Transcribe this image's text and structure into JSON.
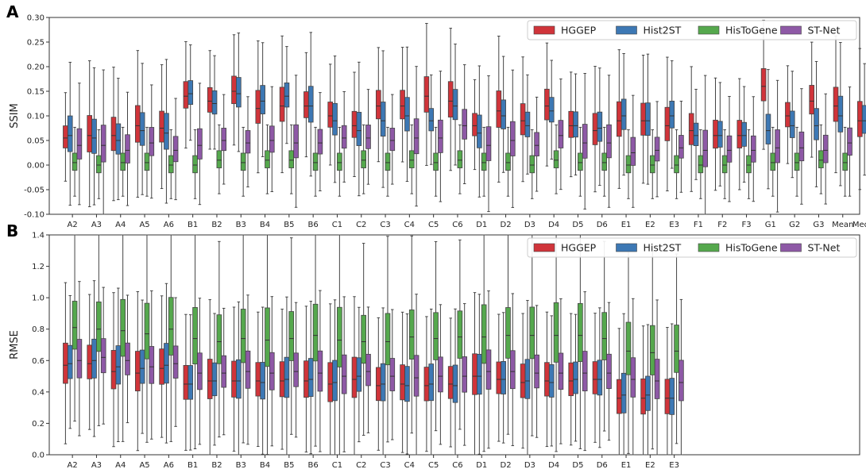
{
  "chart_data": [
    {
      "panel": "A",
      "type": "box",
      "ylabel": "SSIM",
      "xlabel": "",
      "ylim": [
        -0.1,
        0.3
      ],
      "yticks": [
        "-0.10",
        "-0.05",
        "0.00",
        "0.05",
        "0.10",
        "0.15",
        "0.20",
        "0.25",
        "0.30"
      ],
      "yticks_values": [
        -0.1,
        -0.05,
        0.0,
        0.05,
        0.1,
        0.15,
        0.2,
        0.25,
        0.3
      ],
      "categories": [
        "A2",
        "A3",
        "A4",
        "A5",
        "A6",
        "B1",
        "B2",
        "B3",
        "B4",
        "B5",
        "B6",
        "C1",
        "C2",
        "C3",
        "C4",
        "C5",
        "C6",
        "D1",
        "D2",
        "D3",
        "D4",
        "D5",
        "D6",
        "E1",
        "E2",
        "E3",
        "F1",
        "F2",
        "F3",
        "G1",
        "G2",
        "G3",
        "Mean",
        "Median"
      ],
      "legend": {
        "position": "top-right",
        "entries": [
          "HGGEP",
          "Hist2ST",
          "HisToGene",
          "ST-Net"
        ]
      },
      "series": [
        {
          "name": "HGGEP",
          "color": "#d0343a",
          "median": [
            0.055,
            0.06,
            0.06,
            0.08,
            0.075,
            0.14,
            0.13,
            0.15,
            0.115,
            0.12,
            0.12,
            0.1,
            0.08,
            0.12,
            0.12,
            0.14,
            0.13,
            0.08,
            0.11,
            0.09,
            0.12,
            0.08,
            0.07,
            0.09,
            0.09,
            0.08,
            0.07,
            0.06,
            0.06,
            0.16,
            0.1,
            0.13,
            0.12,
            0.09
          ]
        },
        {
          "name": "Hist2ST",
          "color": "#3d78b4",
          "median": [
            0.06,
            0.055,
            0.05,
            0.07,
            0.065,
            0.145,
            0.125,
            0.145,
            0.13,
            0.14,
            0.12,
            0.09,
            0.07,
            0.09,
            0.1,
            0.09,
            0.12,
            0.065,
            0.1,
            0.08,
            0.11,
            0.08,
            0.075,
            0.1,
            0.09,
            0.1,
            0.06,
            0.06,
            0.06,
            0.07,
            0.08,
            0.08,
            0.1,
            0.09
          ]
        },
        {
          "name": "HisToGene",
          "color": "#55a84d",
          "median": [
            0.005,
            0.0,
            0.005,
            0.005,
            0.0,
            0.0,
            0.01,
            0.005,
            0.01,
            0.01,
            0.005,
            0.005,
            0.01,
            0.005,
            0.01,
            0.005,
            0.01,
            0.005,
            0.005,
            0.0,
            0.01,
            0.005,
            0.005,
            0.0,
            0.0,
            0.0,
            0.0,
            0.0,
            0.0,
            0.005,
            0.005,
            0.01,
            0.005,
            0.005
          ]
        },
        {
          "name": "ST-Net",
          "color": "#8e59a6",
          "median": [
            0.04,
            0.04,
            0.03,
            0.045,
            0.03,
            0.04,
            0.05,
            0.045,
            0.05,
            0.045,
            0.045,
            0.055,
            0.055,
            0.05,
            0.055,
            0.055,
            0.08,
            0.04,
            0.05,
            0.04,
            0.06,
            0.045,
            0.045,
            0.025,
            0.03,
            0.035,
            0.03,
            0.03,
            0.03,
            0.035,
            0.035,
            0.03,
            0.045,
            0.04
          ]
        }
      ]
    },
    {
      "panel": "B",
      "type": "box",
      "ylabel": "RMSE",
      "xlabel": "",
      "ylim": [
        0.0,
        1.4
      ],
      "yticks": [
        "0.0",
        "0.2",
        "0.4",
        "0.6",
        "0.8",
        "1.0",
        "1.2",
        "1.4"
      ],
      "yticks_values": [
        0.0,
        0.2,
        0.4,
        0.6,
        0.8,
        1.0,
        1.2,
        1.4
      ],
      "categories": [
        "A2",
        "A3",
        "A4",
        "A5",
        "A6",
        "B1",
        "B2",
        "B3",
        "B4",
        "B5",
        "B6",
        "C1",
        "C2",
        "C3",
        "C4",
        "C5",
        "C6",
        "D1",
        "D2",
        "D3",
        "D4",
        "D5",
        "D6",
        "E1",
        "E2",
        "E3"
      ],
      "legend": {
        "position": "top-right",
        "entries": [
          "HGGEP",
          "Hist2ST",
          "HisToGene",
          "ST-Net"
        ]
      },
      "series": [
        {
          "name": "HGGEP",
          "color": "#d0343a",
          "median": [
            0.57,
            0.58,
            0.53,
            0.52,
            0.55,
            0.45,
            0.47,
            0.47,
            0.47,
            0.47,
            0.47,
            0.45,
            0.48,
            0.44,
            0.45,
            0.44,
            0.45,
            0.5,
            0.48,
            0.46,
            0.47,
            0.47,
            0.48,
            0.36,
            0.36,
            0.36
          ]
        },
        {
          "name": "Hist2ST",
          "color": "#3d78b4",
          "median": [
            0.58,
            0.6,
            0.56,
            0.55,
            0.57,
            0.45,
            0.47,
            0.47,
            0.46,
            0.48,
            0.48,
            0.46,
            0.5,
            0.45,
            0.44,
            0.45,
            0.44,
            0.5,
            0.48,
            0.47,
            0.46,
            0.48,
            0.48,
            0.38,
            0.38,
            0.36
          ]
        },
        {
          "name": "HisToGene",
          "color": "#55a84d",
          "median": [
            0.81,
            0.8,
            0.79,
            0.77,
            0.8,
            0.74,
            0.72,
            0.74,
            0.73,
            0.74,
            0.76,
            0.73,
            0.72,
            0.72,
            0.75,
            0.74,
            0.75,
            0.75,
            0.76,
            0.76,
            0.76,
            0.76,
            0.74,
            0.66,
            0.65,
            0.66
          ]
        },
        {
          "name": "ST-Net",
          "color": "#8e59a6",
          "median": [
            0.6,
            0.62,
            0.6,
            0.56,
            0.58,
            0.52,
            0.52,
            0.53,
            0.52,
            0.53,
            0.52,
            0.5,
            0.53,
            0.5,
            0.49,
            0.5,
            0.5,
            0.53,
            0.53,
            0.52,
            0.52,
            0.52,
            0.52,
            0.48,
            0.47,
            0.46
          ]
        }
      ]
    }
  ]
}
